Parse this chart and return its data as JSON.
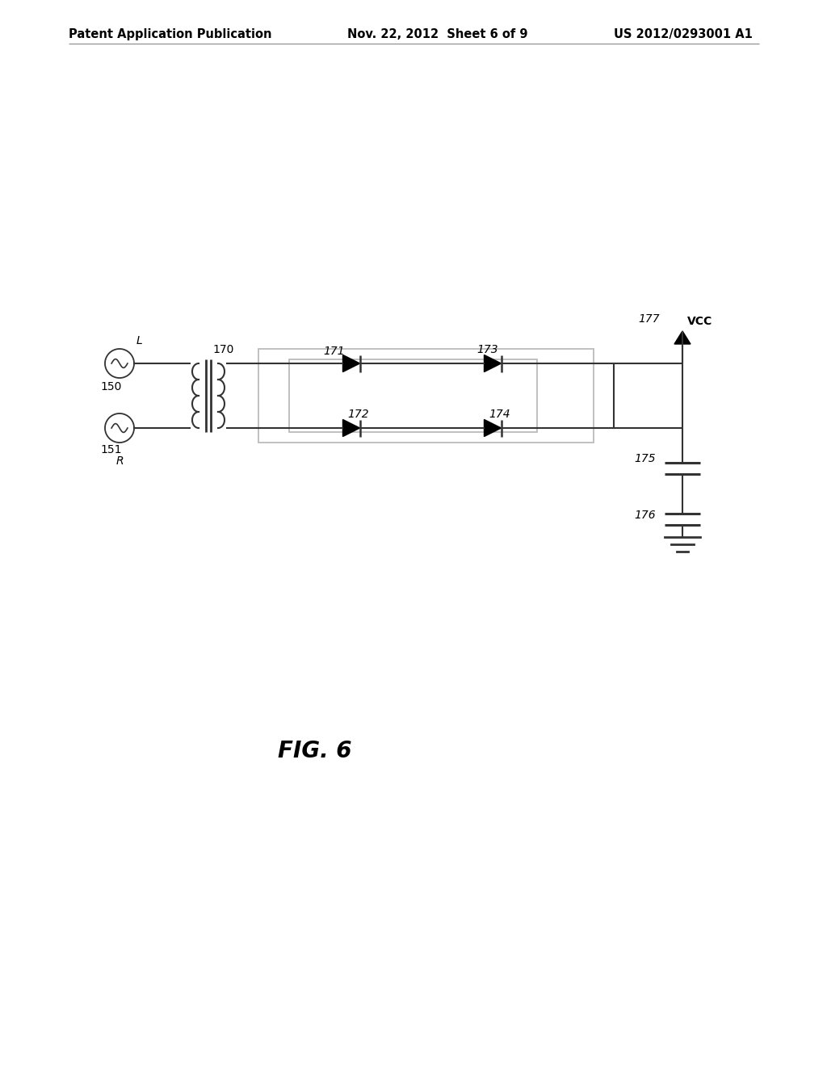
{
  "bg_color": "#ffffff",
  "header_left": "Patent Application Publication",
  "header_center": "Nov. 22, 2012  Sheet 6 of 9",
  "header_right": "US 2012/0293001 A1",
  "header_fontsize": 10.5,
  "fig_label": "FIG. 6",
  "fig_label_fontsize": 20,
  "label_fontsize": 10,
  "line_color": "#333333",
  "box_color": "#bbbbbb"
}
